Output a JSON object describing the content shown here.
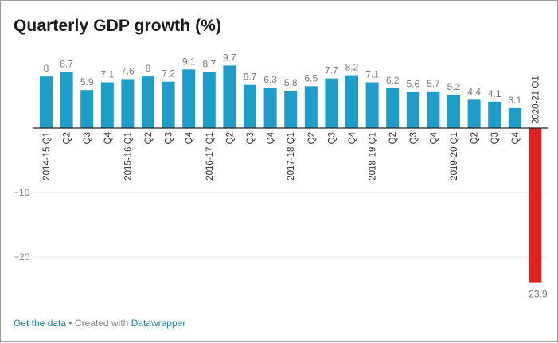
{
  "title": "Quarterly GDP growth (%)",
  "footer": {
    "get_data": "Get the data",
    "separator": " • Created with ",
    "brand": "Datawrapper"
  },
  "colors": {
    "positive": "#1d9dc8",
    "negative": "#dd2222",
    "label": "#777777",
    "grid": "#e6e6e6",
    "axis": "#222222"
  },
  "chart_data": {
    "type": "bar",
    "title": "Quarterly GDP growth (%)",
    "xlabel": "",
    "ylabel": "",
    "ylim": [
      -25,
      10
    ],
    "yticks": [
      -10,
      -20
    ],
    "ytick_labels": [
      "−10",
      "−20"
    ],
    "grid": true,
    "categories": [
      "2014-15 Q1",
      "Q2",
      "Q3",
      "Q4",
      "2015-16 Q1",
      "Q2",
      "Q3",
      "Q4",
      "2016-17 Q1",
      "Q2",
      "Q3",
      "Q4",
      "2017-18 Q1",
      "Q2",
      "Q3",
      "Q4",
      "2018-19 Q1",
      "Q2",
      "Q3",
      "Q4",
      "2019-20 Q1",
      "Q2",
      "Q3",
      "Q4",
      "2020-21 Q1"
    ],
    "values": [
      8,
      8.7,
      5.9,
      7.1,
      7.6,
      8,
      7.2,
      9.1,
      8.7,
      9.7,
      6.7,
      6.3,
      5.8,
      6.5,
      7.7,
      8.2,
      7.1,
      6.2,
      5.6,
      5.7,
      5.2,
      4.4,
      4.1,
      3.1,
      -23.9
    ],
    "value_labels": [
      "8",
      "8.7",
      "5.9",
      "7.1",
      "7.6",
      "8",
      "7.2",
      "9.1",
      "8.7",
      "9.7",
      "6.7",
      "6.3",
      "5.8",
      "6.5",
      "7.7",
      "8.2",
      "7.1",
      "6.2",
      "5.6",
      "5.7",
      "5.2",
      "4.4",
      "4.1",
      "3.1",
      "−23.9"
    ]
  }
}
